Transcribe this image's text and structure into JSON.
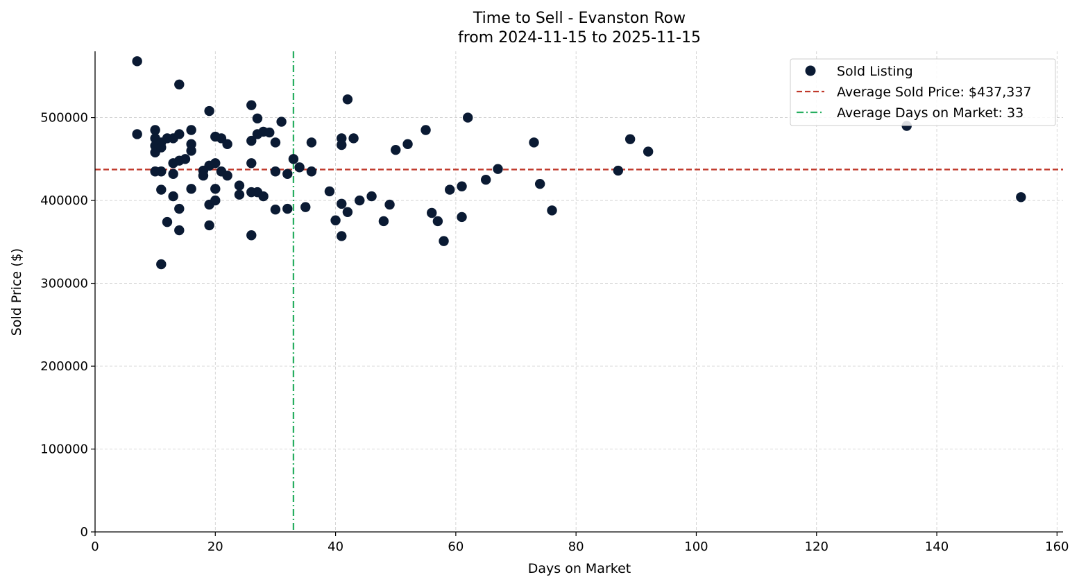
{
  "chart_data": {
    "type": "scatter",
    "title_line1": "Time to Sell - Evanston Row",
    "title_line2": "from 2024-11-15 to 2025-11-15",
    "xlabel": "Days on Market",
    "ylabel": "Sold Price ($)",
    "xlim": [
      0,
      161
    ],
    "ylim": [
      0,
      580000
    ],
    "x_ticks": [
      0,
      20,
      40,
      60,
      80,
      100,
      120,
      140,
      160
    ],
    "y_ticks": [
      0,
      100000,
      200000,
      300000,
      400000,
      500000
    ],
    "grid": true,
    "legend_position": "top-right",
    "legend": {
      "scatter": "Sold Listing",
      "avg_price": "Average Sold Price: $437,337",
      "avg_days": "Average Days on Market: 33"
    },
    "avg_price": 437337,
    "avg_days": 33,
    "colors": {
      "points": "#0a1a33",
      "avg_price_line": "#c0392b",
      "avg_days_line": "#27ae60",
      "grid": "#cccccc"
    },
    "series": [
      {
        "name": "Sold Listing",
        "points": [
          [
            7,
            568000
          ],
          [
            7,
            480000
          ],
          [
            10,
            485000
          ],
          [
            10,
            475000
          ],
          [
            10,
            466000
          ],
          [
            10,
            458000
          ],
          [
            10,
            435000
          ],
          [
            11,
            470000
          ],
          [
            11,
            464000
          ],
          [
            11,
            435000
          ],
          [
            11,
            413000
          ],
          [
            11,
            323000
          ],
          [
            12,
            475000
          ],
          [
            12,
            374000
          ],
          [
            13,
            475000
          ],
          [
            13,
            445000
          ],
          [
            13,
            432000
          ],
          [
            13,
            405000
          ],
          [
            14,
            540000
          ],
          [
            14,
            480000
          ],
          [
            14,
            448000
          ],
          [
            14,
            390000
          ],
          [
            14,
            364000
          ],
          [
            15,
            450000
          ],
          [
            16,
            485000
          ],
          [
            16,
            468000
          ],
          [
            16,
            460000
          ],
          [
            16,
            414000
          ],
          [
            18,
            436000
          ],
          [
            18,
            430000
          ],
          [
            19,
            508000
          ],
          [
            19,
            442000
          ],
          [
            19,
            395000
          ],
          [
            19,
            370000
          ],
          [
            20,
            477000
          ],
          [
            20,
            445000
          ],
          [
            20,
            414000
          ],
          [
            20,
            400000
          ],
          [
            21,
            475000
          ],
          [
            21,
            435000
          ],
          [
            22,
            468000
          ],
          [
            22,
            430000
          ],
          [
            24,
            418000
          ],
          [
            24,
            407000
          ],
          [
            26,
            515000
          ],
          [
            26,
            472000
          ],
          [
            26,
            445000
          ],
          [
            26,
            410000
          ],
          [
            26,
            358000
          ],
          [
            27,
            499000
          ],
          [
            27,
            480000
          ],
          [
            27,
            410000
          ],
          [
            28,
            483000
          ],
          [
            28,
            405000
          ],
          [
            29,
            482000
          ],
          [
            30,
            470000
          ],
          [
            30,
            435000
          ],
          [
            30,
            389000
          ],
          [
            31,
            495000
          ],
          [
            32,
            432000
          ],
          [
            32,
            390000
          ],
          [
            33,
            450000
          ],
          [
            34,
            440000
          ],
          [
            35,
            392000
          ],
          [
            36,
            470000
          ],
          [
            36,
            435000
          ],
          [
            39,
            411000
          ],
          [
            40,
            376000
          ],
          [
            41,
            475000
          ],
          [
            41,
            467000
          ],
          [
            41,
            396000
          ],
          [
            41,
            357000
          ],
          [
            42,
            522000
          ],
          [
            42,
            386000
          ],
          [
            43,
            475000
          ],
          [
            44,
            400000
          ],
          [
            46,
            405000
          ],
          [
            48,
            375000
          ],
          [
            49,
            395000
          ],
          [
            50,
            461000
          ],
          [
            52,
            468000
          ],
          [
            55,
            485000
          ],
          [
            56,
            385000
          ],
          [
            57,
            375000
          ],
          [
            58,
            351000
          ],
          [
            59,
            413000
          ],
          [
            61,
            417000
          ],
          [
            61,
            380000
          ],
          [
            62,
            500000
          ],
          [
            65,
            425000
          ],
          [
            67,
            438000
          ],
          [
            73,
            470000
          ],
          [
            74,
            420000
          ],
          [
            76,
            388000
          ],
          [
            87,
            436000
          ],
          [
            89,
            474000
          ],
          [
            92,
            459000
          ],
          [
            135,
            490000
          ],
          [
            154,
            404000
          ]
        ]
      }
    ]
  }
}
